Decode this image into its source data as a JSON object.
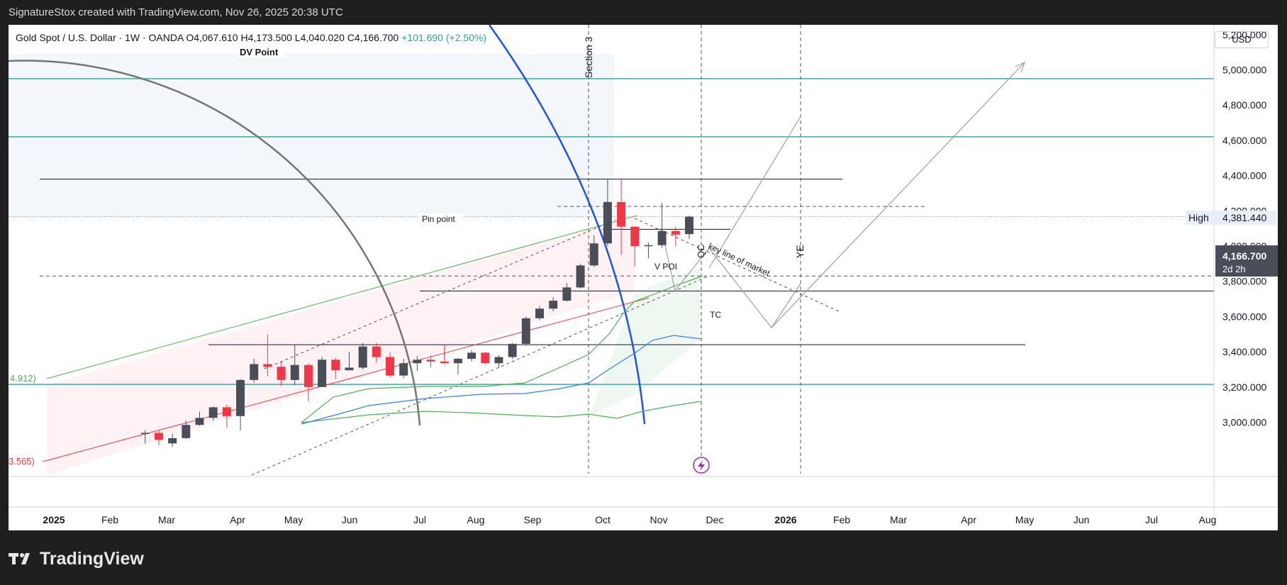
{
  "header": {
    "attribution": "SignatureStox created with TradingView.com, Nov 26, 2025 20:38 UTC"
  },
  "symbol": {
    "name": "Gold Spot / U.S. Dollar · 1W · OANDA",
    "open_label": "O",
    "open": "4,067.610",
    "high_label": "H",
    "high": "4,173.500",
    "low_label": "L",
    "low": "4,040.020",
    "close_label": "C",
    "close": "4,166.700",
    "change": "+101.690 (+2.50%)"
  },
  "price_scale": {
    "currency": "USD",
    "ticks": [
      "5,200.000",
      "5,000.000",
      "4,800.000",
      "4,600.000",
      "4,400.000",
      "4,200.000",
      "4,000.000",
      "3,800.000",
      "3,600.000",
      "3,400.000",
      "3,200.000",
      "3,000.000"
    ],
    "high_badge_label": "High",
    "high_badge_value": "4,381.440",
    "last_price": "4,166.700",
    "countdown": "2d 2h"
  },
  "time_axis": [
    "2025",
    "Feb",
    "Mar",
    "Apr",
    "May",
    "Jun",
    "Jul",
    "Aug",
    "Sep",
    "Oct",
    "Nov",
    "Dec",
    "2026",
    "Feb",
    "Mar",
    "Apr",
    "May",
    "Jun",
    "Jul",
    "Aug"
  ],
  "annotations": {
    "dv_point": "DV Point",
    "pin_point": "Pin point",
    "section3": "Section 3",
    "v_poi": "V POI",
    "key_line": "key line of market",
    "tc": "TC",
    "ye": "YE",
    "qc": "QC",
    "left_green": "4.912)",
    "left_red": "3.565)"
  },
  "footer": {
    "brand": "TradingView"
  },
  "colors": {
    "up": "#4a4e59",
    "down": "#f23645",
    "teal": "#26a69a",
    "blue": "#1e53e5",
    "green": "#4caf50",
    "red": "#f23645",
    "ma": "#2f80ed",
    "arrow": "#9e9e9e"
  },
  "chart_data": {
    "type": "candlestick",
    "title": "Gold Spot / U.S. Dollar · 1W · OANDA",
    "ylim": [
      2900,
      5350
    ],
    "candles": [
      {
        "week": "2025-02-17",
        "o": 2935,
        "h": 2955,
        "l": 2880,
        "c": 2940
      },
      {
        "week": "2025-02-24",
        "o": 2940,
        "h": 2955,
        "l": 2870,
        "c": 2900
      },
      {
        "week": "2025-03-03",
        "o": 2880,
        "h": 2935,
        "l": 2860,
        "c": 2910
      },
      {
        "week": "2025-03-10",
        "o": 2910,
        "h": 3010,
        "l": 2905,
        "c": 2985
      },
      {
        "week": "2025-03-17",
        "o": 2985,
        "h": 3060,
        "l": 2980,
        "c": 3025
      },
      {
        "week": "2025-03-24",
        "o": 3025,
        "h": 3090,
        "l": 3010,
        "c": 3085
      },
      {
        "week": "2025-03-31",
        "o": 3085,
        "h": 3100,
        "l": 2970,
        "c": 3035
      },
      {
        "week": "2025-04-07",
        "o": 3035,
        "h": 3245,
        "l": 2955,
        "c": 3240
      },
      {
        "week": "2025-04-14",
        "o": 3240,
        "h": 3360,
        "l": 3225,
        "c": 3330
      },
      {
        "week": "2025-04-21",
        "o": 3330,
        "h": 3500,
        "l": 3260,
        "c": 3315
      },
      {
        "week": "2025-04-28",
        "o": 3315,
        "h": 3345,
        "l": 3205,
        "c": 3240
      },
      {
        "week": "2025-05-05",
        "o": 3240,
        "h": 3440,
        "l": 3210,
        "c": 3325
      },
      {
        "week": "2025-05-12",
        "o": 3325,
        "h": 3335,
        "l": 3120,
        "c": 3200
      },
      {
        "week": "2025-05-19",
        "o": 3200,
        "h": 3370,
        "l": 3200,
        "c": 3355
      },
      {
        "week": "2025-05-26",
        "o": 3355,
        "h": 3365,
        "l": 3245,
        "c": 3295
      },
      {
        "week": "2025-06-02",
        "o": 3295,
        "h": 3400,
        "l": 3295,
        "c": 3310
      },
      {
        "week": "2025-06-09",
        "o": 3310,
        "h": 3450,
        "l": 3300,
        "c": 3430
      },
      {
        "week": "2025-06-16",
        "o": 3430,
        "h": 3450,
        "l": 3340,
        "c": 3370
      },
      {
        "week": "2025-06-23",
        "o": 3370,
        "h": 3395,
        "l": 3255,
        "c": 3265
      },
      {
        "week": "2025-06-30",
        "o": 3265,
        "h": 3360,
        "l": 3250,
        "c": 3335
      },
      {
        "week": "2025-07-07",
        "o": 3335,
        "h": 3375,
        "l": 3290,
        "c": 3355
      },
      {
        "week": "2025-07-14",
        "o": 3355,
        "h": 3380,
        "l": 3310,
        "c": 3345
      },
      {
        "week": "2025-07-21",
        "o": 3345,
        "h": 3440,
        "l": 3330,
        "c": 3335
      },
      {
        "week": "2025-07-28",
        "o": 3335,
        "h": 3365,
        "l": 3270,
        "c": 3360
      },
      {
        "week": "2025-08-04",
        "o": 3360,
        "h": 3410,
        "l": 3345,
        "c": 3395
      },
      {
        "week": "2025-08-11",
        "o": 3395,
        "h": 3400,
        "l": 3330,
        "c": 3335
      },
      {
        "week": "2025-08-18",
        "o": 3335,
        "h": 3380,
        "l": 3310,
        "c": 3370
      },
      {
        "week": "2025-08-25",
        "o": 3370,
        "h": 3450,
        "l": 3360,
        "c": 3445
      },
      {
        "week": "2025-09-01",
        "o": 3445,
        "h": 3600,
        "l": 3435,
        "c": 3590
      },
      {
        "week": "2025-09-08",
        "o": 3590,
        "h": 3660,
        "l": 3580,
        "c": 3645
      },
      {
        "week": "2025-09-15",
        "o": 3645,
        "h": 3710,
        "l": 3630,
        "c": 3690
      },
      {
        "week": "2025-09-22",
        "o": 3690,
        "h": 3790,
        "l": 3685,
        "c": 3765
      },
      {
        "week": "2025-09-29",
        "o": 3765,
        "h": 3900,
        "l": 3760,
        "c": 3890
      },
      {
        "week": "2025-10-06",
        "o": 3890,
        "h": 4060,
        "l": 3880,
        "c": 4015
      },
      {
        "week": "2025-10-13",
        "o": 4015,
        "h": 4381,
        "l": 4000,
        "c": 4250
      },
      {
        "week": "2025-10-20",
        "o": 4250,
        "h": 4380,
        "l": 3950,
        "c": 4110
      },
      {
        "week": "2025-10-27",
        "o": 4110,
        "h": 4110,
        "l": 3885,
        "c": 4000
      },
      {
        "week": "2025-11-03",
        "o": 4000,
        "h": 4020,
        "l": 3930,
        "c": 4005
      },
      {
        "week": "2025-11-10",
        "o": 4005,
        "h": 4245,
        "l": 3990,
        "c": 4085
      },
      {
        "week": "2025-11-17",
        "o": 4085,
        "h": 4110,
        "l": 4000,
        "c": 4065
      },
      {
        "week": "2025-11-24",
        "o": 4067.61,
        "h": 4173.5,
        "l": 4040.02,
        "c": 4166.7
      }
    ]
  }
}
